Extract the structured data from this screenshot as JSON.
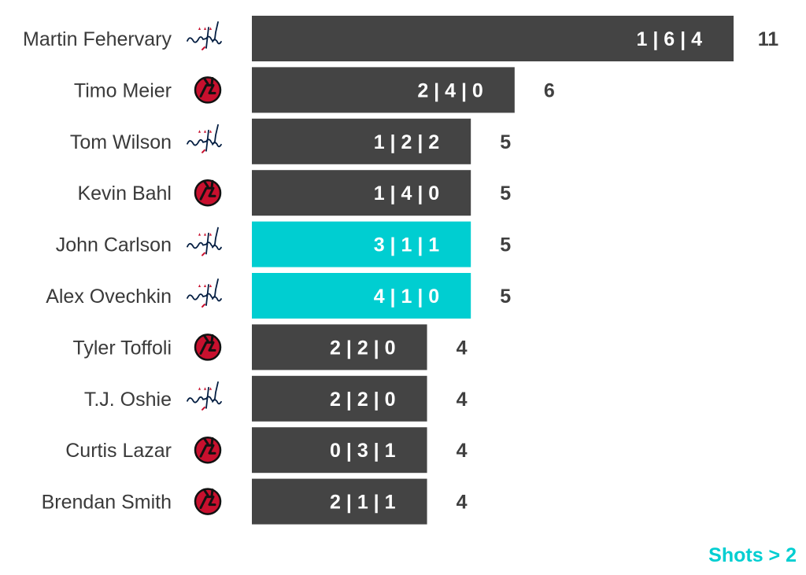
{
  "chart_data": {
    "type": "bar",
    "orientation": "horizontal",
    "categories": [
      "Martin Fehervary",
      "Timo Meier",
      "Tom Wilson",
      "Kevin Bahl",
      "John Carlson",
      "Alex Ovechkin",
      "Tyler Toffoli",
      "T.J. Oshie",
      "Curtis Lazar",
      "Brendan Smith"
    ],
    "teams": [
      "capitals-logo-icon",
      "devils-logo-icon",
      "capitals-logo-icon",
      "devils-logo-icon",
      "capitals-logo-icon",
      "capitals-logo-icon",
      "devils-logo-icon",
      "capitals-logo-icon",
      "devils-logo-icon",
      "devils-logo-icon"
    ],
    "values": [
      11,
      6,
      5,
      5,
      5,
      5,
      4,
      4,
      4,
      4
    ],
    "bar_labels": [
      "1 | 6 | 4",
      "2 | 4 | 0",
      "1 | 2 | 2",
      "1 | 4 | 0",
      "3 | 1 | 1",
      "4 | 1 | 0",
      "2 | 2 | 0",
      "2 | 2 | 0",
      "0 | 3 | 1",
      "2 | 1 | 1"
    ],
    "highlighted": [
      false,
      false,
      false,
      false,
      true,
      true,
      false,
      false,
      false,
      false
    ],
    "xlim": [
      0,
      11
    ],
    "grid": false,
    "legend_note": "Shots > 2",
    "colors": {
      "bar": "#444444",
      "highlight": "#00ced1",
      "note": "#00ced1",
      "devils_red": "#c8102e",
      "capitals_navy": "#041e42",
      "capitals_red": "#c8102e"
    }
  }
}
